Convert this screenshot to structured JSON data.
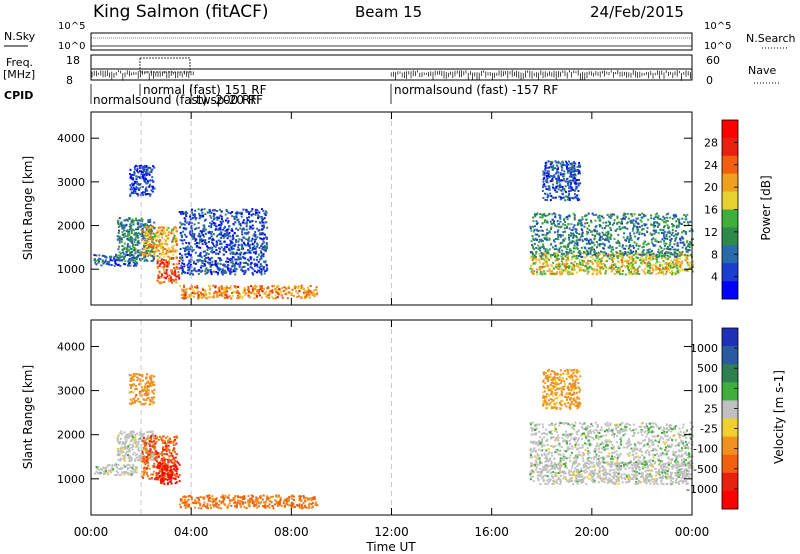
{
  "header": {
    "station": "King Salmon (fitACF)",
    "beam": "Beam 15",
    "date": "24/Feb/2015"
  },
  "status_panels": {
    "nsky_label": "N.Sky",
    "freq_label": "Freq.",
    "freq_unit": "[MHz]",
    "cpid_label": "CPID",
    "nsearch_label": "N.Search",
    "nave_label": "Nave",
    "noise_ticks_left": [
      "10^5",
      "10^0"
    ],
    "noise_ticks_right": [
      "10^5",
      "10^0"
    ],
    "freq_ticks": [
      "18",
      "8"
    ],
    "nave_ticks": [
      "60",
      "0"
    ],
    "cpid_segments": [
      {
        "label": "normalsound (fast) -200 RF"
      },
      {
        "label": "normal (fast) 151 RF"
      },
      {
        "label": "twsp-20 RF"
      },
      {
        "label": "normalsound (fast) -157 RF"
      }
    ]
  },
  "x_axis": {
    "label": "Time UT",
    "ticks": [
      "00:00",
      "04:00",
      "08:00",
      "12:00",
      "16:00",
      "20:00",
      "00:00"
    ]
  },
  "colors": {
    "power": [
      "#0000ff",
      "#1a3ecf",
      "#2a6aa8",
      "#2e8a4a",
      "#3fae3a",
      "#e6d230",
      "#f0a020",
      "#f06010",
      "#e82010",
      "#ff0000"
    ],
    "velocity": [
      "#1e30b4",
      "#2a5aa0",
      "#2e8050",
      "#3fae3a",
      "#c0c0c0",
      "#f0d030",
      "#f09020",
      "#f06010",
      "#e82010",
      "#ff0000"
    ]
  },
  "chart_data": [
    {
      "type": "heatmap",
      "name": "power",
      "title": "",
      "xlabel": "",
      "ylabel": "Slant Range [km]",
      "xlim": [
        0,
        24
      ],
      "ylim": [
        180,
        4600
      ],
      "yticks": [
        "1000",
        "2000",
        "3000",
        "4000"
      ],
      "colorbar": {
        "label": "Power [dB]",
        "range": [
          0,
          32
        ],
        "ticks": [
          "4",
          "8",
          "12",
          "16",
          "20",
          "24",
          "28"
        ]
      },
      "regions": [
        {
          "x": [
            0.1,
            1.8
          ],
          "y": [
            1100,
            1350
          ],
          "value": 6
        },
        {
          "x": [
            1.0,
            2.5
          ],
          "y": [
            1200,
            2200
          ],
          "value": 10
        },
        {
          "x": [
            2.0,
            3.4
          ],
          "y": [
            1300,
            2000
          ],
          "value": 20
        },
        {
          "x": [
            2.6,
            3.5
          ],
          "y": [
            700,
            1300
          ],
          "value": 26
        },
        {
          "x": [
            3.5,
            9.0
          ],
          "y": [
            350,
            650
          ],
          "value": 22
        },
        {
          "x": [
            3.5,
            7.0
          ],
          "y": [
            900,
            2400
          ],
          "value": 6
        },
        {
          "x": [
            1.5,
            2.5
          ],
          "y": [
            2700,
            3400
          ],
          "value": 5
        },
        {
          "x": [
            17.5,
            24.0
          ],
          "y": [
            900,
            1400
          ],
          "value": 18
        },
        {
          "x": [
            17.5,
            24.0
          ],
          "y": [
            1300,
            2300
          ],
          "value": 10
        },
        {
          "x": [
            18.0,
            19.5
          ],
          "y": [
            2600,
            3500
          ],
          "value": 6
        }
      ]
    },
    {
      "type": "heatmap",
      "name": "velocity",
      "title": "",
      "xlabel": "Time UT",
      "ylabel": "Slant Range [km]",
      "xlim": [
        0,
        24
      ],
      "ylim": [
        180,
        4600
      ],
      "yticks": [
        "1000",
        "2000",
        "3000",
        "4000"
      ],
      "colorbar": {
        "label": "Velocity [m s-1]",
        "ticks": [
          "1000",
          "500",
          "100",
          "25",
          "-25",
          "-100",
          "-500",
          "-1000"
        ]
      },
      "regions": [
        {
          "x": [
            0.1,
            1.8
          ],
          "y": [
            1100,
            1350
          ],
          "value": 0
        },
        {
          "x": [
            1.0,
            2.5
          ],
          "y": [
            1400,
            2100
          ],
          "value": 0
        },
        {
          "x": [
            2.0,
            3.4
          ],
          "y": [
            1000,
            2000
          ],
          "value": -400
        },
        {
          "x": [
            2.6,
            3.5
          ],
          "y": [
            900,
            1400
          ],
          "value": -800
        },
        {
          "x": [
            3.5,
            9.0
          ],
          "y": [
            350,
            650
          ],
          "value": -300
        },
        {
          "x": [
            1.5,
            2.5
          ],
          "y": [
            2700,
            3400
          ],
          "value": -200
        },
        {
          "x": [
            17.5,
            24.0
          ],
          "y": [
            900,
            1400
          ],
          "value": 0
        },
        {
          "x": [
            17.5,
            24.0
          ],
          "y": [
            1300,
            2300
          ],
          "value": 5
        },
        {
          "x": [
            18.0,
            19.5
          ],
          "y": [
            2600,
            3500
          ],
          "value": -150
        }
      ]
    }
  ]
}
